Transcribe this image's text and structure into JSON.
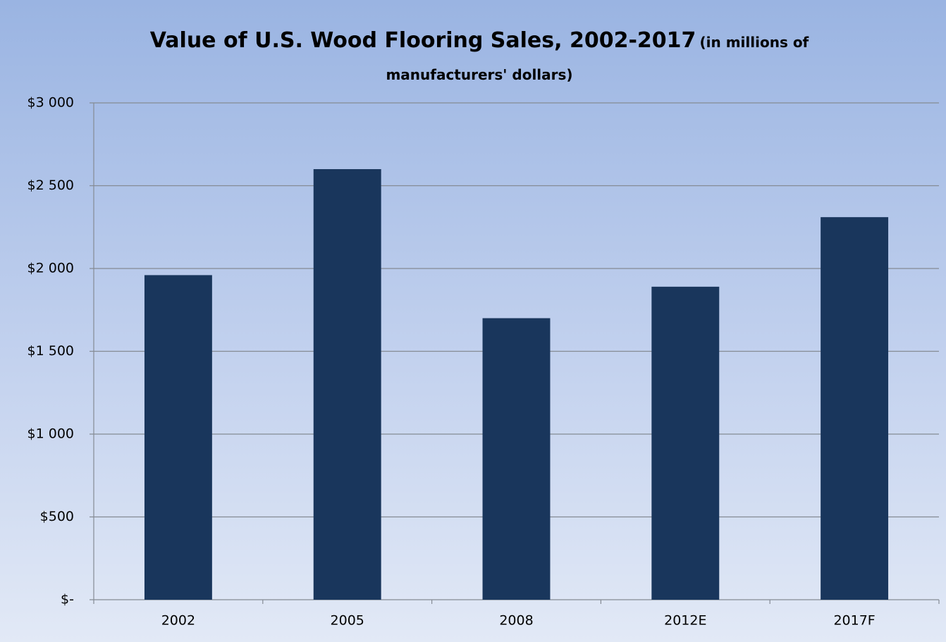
{
  "chart_data": {
    "type": "bar",
    "title": "Value of U.S. Wood Flooring Sales, 2002-2017",
    "subtitle": "(in millions of manufacturers' dollars)",
    "categories": [
      "2002",
      "2005",
      "2008",
      "2012E",
      "2017F"
    ],
    "values": [
      1960,
      2600,
      1700,
      1890,
      2310
    ],
    "color": "#19365c",
    "ylim": [
      0,
      3000
    ],
    "yticks": [
      {
        "value": 0,
        "label": "$-"
      },
      {
        "value": 500,
        "label": "$500"
      },
      {
        "value": 1000,
        "label": "$1 000"
      },
      {
        "value": 1500,
        "label": "$1 500"
      },
      {
        "value": 2000,
        "label": "$2 000"
      },
      {
        "value": 2500,
        "label": "$2 500"
      },
      {
        "value": 3000,
        "label": "$3 000"
      }
    ],
    "grid": true
  }
}
